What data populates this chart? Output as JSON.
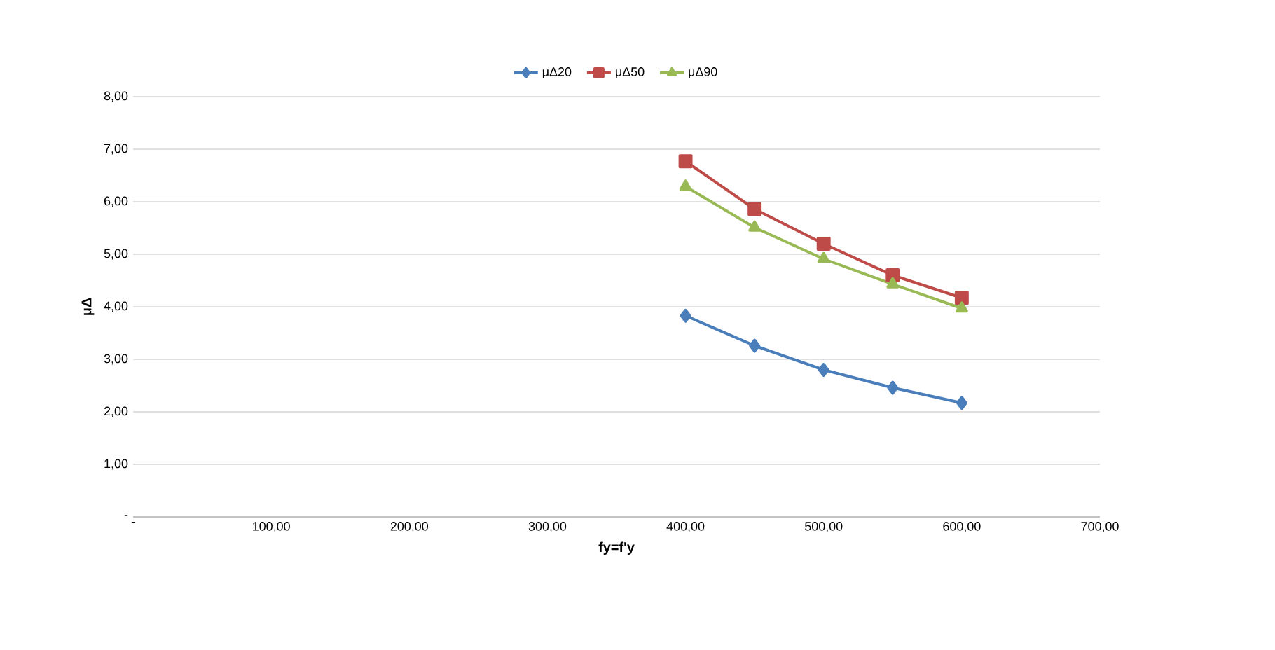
{
  "chart_data": {
    "type": "line",
    "xlabel": "fy=f'y",
    "ylabel": "μΔ",
    "x": [
      400,
      450,
      500,
      550,
      600
    ],
    "series": [
      {
        "name": "μΔ20",
        "color": "#4a7ebb",
        "marker": "diamond",
        "values": [
          3.83,
          3.26,
          2.8,
          2.46,
          2.17
        ]
      },
      {
        "name": "μΔ50",
        "color": "#be4b48",
        "marker": "square",
        "values": [
          6.77,
          5.86,
          5.2,
          4.6,
          4.17
        ]
      },
      {
        "name": "μΔ90",
        "color": "#98b954",
        "marker": "triangle",
        "values": [
          6.29,
          5.51,
          4.91,
          4.43,
          3.97
        ]
      }
    ],
    "xlim": [
      0,
      700
    ],
    "xticks": [
      {
        "value": 0,
        "label": "-"
      },
      {
        "value": 100,
        "label": "100,00"
      },
      {
        "value": 200,
        "label": "200,00"
      },
      {
        "value": 300,
        "label": "300,00"
      },
      {
        "value": 400,
        "label": "400,00"
      },
      {
        "value": 500,
        "label": "500,00"
      },
      {
        "value": 600,
        "label": "600,00"
      },
      {
        "value": 700,
        "label": "700,00"
      }
    ],
    "ylim": [
      0,
      8
    ],
    "yticks": [
      {
        "value": 0,
        "label": "-"
      },
      {
        "value": 1,
        "label": "1,00"
      },
      {
        "value": 2,
        "label": "2,00"
      },
      {
        "value": 3,
        "label": "3,00"
      },
      {
        "value": 4,
        "label": "4,00"
      },
      {
        "value": 5,
        "label": "5,00"
      },
      {
        "value": 6,
        "label": "6,00"
      },
      {
        "value": 7,
        "label": "7,00"
      },
      {
        "value": 8,
        "label": "8,00"
      }
    ],
    "grid": "y",
    "legend": "top",
    "line_style": "solid"
  }
}
